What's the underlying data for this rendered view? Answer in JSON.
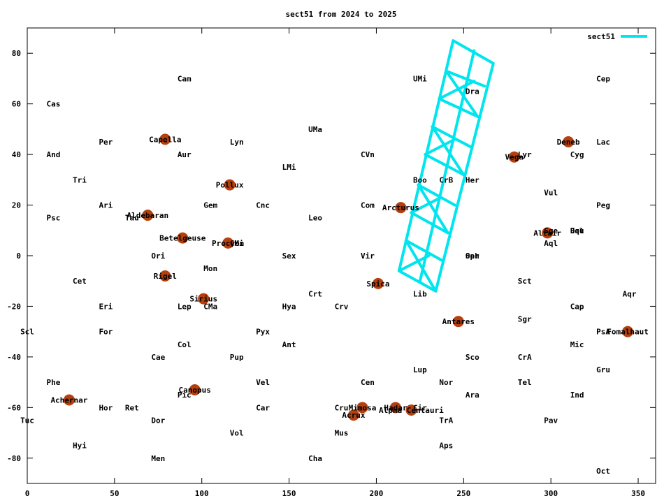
{
  "chart_data": {
    "type": "scatter",
    "title": "sect51 from 2024 to 2025",
    "xlabel": "",
    "ylabel": "",
    "xlim": [
      0,
      360
    ],
    "ylim": [
      -90,
      90
    ],
    "xticks": [
      0,
      50,
      100,
      150,
      200,
      250,
      300,
      350
    ],
    "yticks": [
      -80,
      -60,
      -40,
      -20,
      0,
      20,
      40,
      60,
      80
    ],
    "grid": false,
    "legend_position": "top-right",
    "colors": {
      "series": "#00e5ee",
      "star": "#b5400f",
      "text": "#000000"
    },
    "series": [
      {
        "name": "sect51",
        "type": "line",
        "lines": [
          [
            [
              244,
              85
            ],
            [
              267,
              76
            ],
            [
              234,
              -14
            ],
            [
              213,
              -6
            ],
            [
              244,
              85
            ]
          ],
          [
            [
              256,
              81
            ],
            [
              225,
              -10
            ]
          ],
          [
            [
              240,
              73
            ],
            [
              262,
              67
            ]
          ],
          [
            [
              236,
              62
            ],
            [
              258,
              55
            ]
          ],
          [
            [
              232,
              51
            ],
            [
              254,
              43
            ]
          ],
          [
            [
              228,
              40
            ],
            [
              250,
              32
            ]
          ],
          [
            [
              224,
              28
            ],
            [
              245,
              20
            ]
          ],
          [
            [
              220,
              17
            ],
            [
              241,
              9
            ]
          ],
          [
            [
              217,
              6
            ],
            [
              238,
              -2
            ]
          ],
          [
            [
              240,
              73
            ],
            [
              258,
              55
            ]
          ],
          [
            [
              256,
              69
            ],
            [
              236,
              62
            ]
          ],
          [
            [
              232,
              51
            ],
            [
              250,
              32
            ]
          ],
          [
            [
              245,
              46
            ],
            [
              228,
              40
            ]
          ],
          [
            [
              224,
              28
            ],
            [
              241,
              9
            ]
          ],
          [
            [
              237,
              23
            ],
            [
              220,
              17
            ]
          ],
          [
            [
              217,
              6
            ],
            [
              234,
              -14
            ]
          ],
          [
            [
              230,
              0
            ],
            [
              213,
              -6
            ]
          ]
        ]
      }
    ],
    "constellations": [
      {
        "label": "Cam",
        "x": 90,
        "y": 70
      },
      {
        "label": "Cas",
        "x": 15,
        "y": 60
      },
      {
        "label": "UMi",
        "x": 225,
        "y": 70
      },
      {
        "label": "Dra",
        "x": 255,
        "y": 65
      },
      {
        "label": "Cep",
        "x": 330,
        "y": 70
      },
      {
        "label": "UMa",
        "x": 165,
        "y": 50
      },
      {
        "label": "Per",
        "x": 45,
        "y": 45
      },
      {
        "label": "Lyn",
        "x": 120,
        "y": 45
      },
      {
        "label": "Lac",
        "x": 330,
        "y": 45
      },
      {
        "label": "And",
        "x": 15,
        "y": 40
      },
      {
        "label": "Aur",
        "x": 90,
        "y": 40
      },
      {
        "label": "CVn",
        "x": 195,
        "y": 40
      },
      {
        "label": "Lyr",
        "x": 285,
        "y": 40
      },
      {
        "label": "Cyg",
        "x": 315,
        "y": 40
      },
      {
        "label": "LMi",
        "x": 150,
        "y": 35
      },
      {
        "label": "Tri",
        "x": 30,
        "y": 30
      },
      {
        "label": "Boo",
        "x": 225,
        "y": 30
      },
      {
        "label": "CrB",
        "x": 240,
        "y": 30
      },
      {
        "label": "Her",
        "x": 255,
        "y": 30
      },
      {
        "label": "Vul",
        "x": 300,
        "y": 25
      },
      {
        "label": "Ari",
        "x": 45,
        "y": 20
      },
      {
        "label": "Gem",
        "x": 105,
        "y": 20
      },
      {
        "label": "Cnc",
        "x": 135,
        "y": 20
      },
      {
        "label": "Com",
        "x": 195,
        "y": 20
      },
      {
        "label": "Peg",
        "x": 330,
        "y": 20
      },
      {
        "label": "Psc",
        "x": 15,
        "y": 15
      },
      {
        "label": "Tau",
        "x": 60,
        "y": 15
      },
      {
        "label": "Leo",
        "x": 165,
        "y": 15
      },
      {
        "label": "Sge",
        "x": 300,
        "y": 10
      },
      {
        "label": "Del",
        "x": 315,
        "y": 10
      },
      {
        "label": "Equ",
        "x": 315,
        "y": 10
      },
      {
        "label": "CMi",
        "x": 120,
        "y": 5
      },
      {
        "label": "Aql",
        "x": 300,
        "y": 5
      },
      {
        "label": "Ori",
        "x": 75,
        "y": 0
      },
      {
        "label": "Sex",
        "x": 150,
        "y": 0
      },
      {
        "label": "Vir",
        "x": 195,
        "y": 0
      },
      {
        "label": "Oph",
        "x": 255,
        "y": 0
      },
      {
        "label": "Ser",
        "x": 255,
        "y": 0
      },
      {
        "label": "Mon",
        "x": 105,
        "y": -5
      },
      {
        "label": "Cet",
        "x": 30,
        "y": -10
      },
      {
        "label": "Sct",
        "x": 285,
        "y": -10
      },
      {
        "label": "Crt",
        "x": 165,
        "y": -15
      },
      {
        "label": "Lib",
        "x": 225,
        "y": -15
      },
      {
        "label": "Aqr",
        "x": 345,
        "y": -15
      },
      {
        "label": "Eri",
        "x": 45,
        "y": -20
      },
      {
        "label": "Lep",
        "x": 90,
        "y": -20
      },
      {
        "label": "CMa",
        "x": 105,
        "y": -20
      },
      {
        "label": "Hya",
        "x": 150,
        "y": -20
      },
      {
        "label": "Crv",
        "x": 180,
        "y": -20
      },
      {
        "label": "Cap",
        "x": 315,
        "y": -20
      },
      {
        "label": "Sgr",
        "x": 285,
        "y": -25
      },
      {
        "label": "Scl",
        "x": 0,
        "y": -30
      },
      {
        "label": "For",
        "x": 45,
        "y": -30
      },
      {
        "label": "Pyx",
        "x": 135,
        "y": -30
      },
      {
        "label": "PsA",
        "x": 330,
        "y": -30
      },
      {
        "label": "Col",
        "x": 90,
        "y": -35
      },
      {
        "label": "Ant",
        "x": 150,
        "y": -35
      },
      {
        "label": "Mic",
        "x": 315,
        "y": -35
      },
      {
        "label": "Cae",
        "x": 75,
        "y": -40
      },
      {
        "label": "Pup",
        "x": 120,
        "y": -40
      },
      {
        "label": "Sco",
        "x": 255,
        "y": -40
      },
      {
        "label": "CrA",
        "x": 285,
        "y": -40
      },
      {
        "label": "Lup",
        "x": 225,
        "y": -45
      },
      {
        "label": "Gru",
        "x": 330,
        "y": -45
      },
      {
        "label": "Phe",
        "x": 15,
        "y": -50
      },
      {
        "label": "Vel",
        "x": 135,
        "y": -50
      },
      {
        "label": "Cen",
        "x": 195,
        "y": -50
      },
      {
        "label": "Nor",
        "x": 240,
        "y": -50
      },
      {
        "label": "Tel",
        "x": 285,
        "y": -50
      },
      {
        "label": "Pic",
        "x": 90,
        "y": -55
      },
      {
        "label": "Ara",
        "x": 255,
        "y": -55
      },
      {
        "label": "Ind",
        "x": 315,
        "y": -55
      },
      {
        "label": "Hor",
        "x": 45,
        "y": -60
      },
      {
        "label": "Ret",
        "x": 60,
        "y": -60
      },
      {
        "label": "Car",
        "x": 135,
        "y": -60
      },
      {
        "label": "Cru",
        "x": 180,
        "y": -60
      },
      {
        "label": "Cir",
        "x": 225,
        "y": -60
      },
      {
        "label": "Tuc",
        "x": 0,
        "y": -65
      },
      {
        "label": "Dor",
        "x": 75,
        "y": -65
      },
      {
        "label": "TrA",
        "x": 240,
        "y": -65
      },
      {
        "label": "Pav",
        "x": 300,
        "y": -65
      },
      {
        "label": "Vol",
        "x": 120,
        "y": -70
      },
      {
        "label": "Mus",
        "x": 180,
        "y": -70
      },
      {
        "label": "Hyi",
        "x": 30,
        "y": -75
      },
      {
        "label": "Aps",
        "x": 240,
        "y": -75
      },
      {
        "label": "Men",
        "x": 75,
        "y": -80
      },
      {
        "label": "Cha",
        "x": 165,
        "y": -80
      },
      {
        "label": "Oct",
        "x": 330,
        "y": -85
      }
    ],
    "stars": [
      {
        "label": "Capella",
        "x": 79,
        "y": 46
      },
      {
        "label": "Deneb",
        "x": 310,
        "y": 45
      },
      {
        "label": "Vega",
        "x": 279,
        "y": 39
      },
      {
        "label": "Pollux",
        "x": 116,
        "y": 28
      },
      {
        "label": "Arcturus",
        "x": 214,
        "y": 19
      },
      {
        "label": "Aldebaran",
        "x": 69,
        "y": 16
      },
      {
        "label": "Altair",
        "x": 298,
        "y": 9
      },
      {
        "label": "Betelgeuse",
        "x": 89,
        "y": 7
      },
      {
        "label": "Procyon",
        "x": 115,
        "y": 5
      },
      {
        "label": "Rigel",
        "x": 79,
        "y": -8
      },
      {
        "label": "Spica",
        "x": 201,
        "y": -11
      },
      {
        "label": "Sirius",
        "x": 101,
        "y": -17
      },
      {
        "label": "Antares",
        "x": 247,
        "y": -26
      },
      {
        "label": "Fomalhaut",
        "x": 344,
        "y": -30
      },
      {
        "label": "Canopus",
        "x": 96,
        "y": -53
      },
      {
        "label": "Achernar",
        "x": 24,
        "y": -57
      },
      {
        "label": "Mimosa",
        "x": 192,
        "y": -60
      },
      {
        "label": "Hadar",
        "x": 211,
        "y": -60
      },
      {
        "label": "Alpha Centauri",
        "x": 220,
        "y": -61
      },
      {
        "label": "Acrux",
        "x": 187,
        "y": -63
      }
    ]
  }
}
